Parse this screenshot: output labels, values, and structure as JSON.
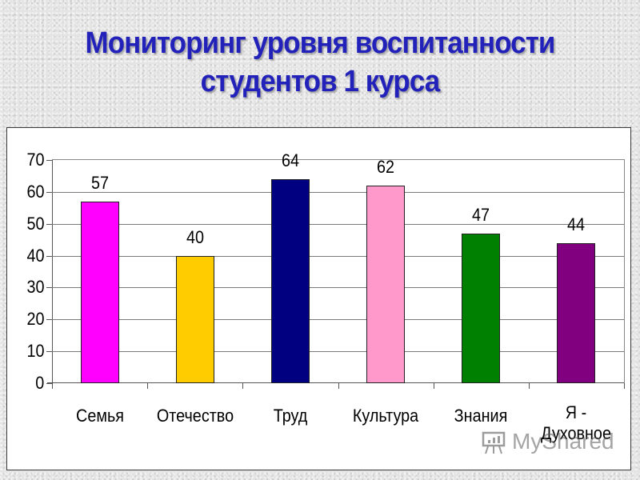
{
  "title": {
    "line1": "Мониторинг уровня воспитанности",
    "line2": "студентов 1 курса"
  },
  "watermark": {
    "text": "MyShared",
    "icon": "presentation-board-icon"
  },
  "colors": {
    "title": "#2222bb",
    "bars": [
      "#ff00ff",
      "#ffcc00",
      "#000080",
      "#ff99cc",
      "#008000",
      "#800080"
    ]
  },
  "chart_data": {
    "type": "bar",
    "title": "Мониторинг уровня воспитанности студентов 1 курса",
    "xlabel": "",
    "ylabel": "",
    "categories": [
      "Семья",
      "Отечество",
      "Труд",
      "Культура",
      "Знания",
      "Я - Духовное"
    ],
    "values": [
      57,
      40,
      64,
      62,
      47,
      44
    ],
    "value_labels": [
      "57",
      "40",
      "64",
      "62",
      "47",
      "44"
    ],
    "ylim": [
      0,
      70
    ],
    "yticks": [
      "0",
      "10",
      "20",
      "30",
      "40",
      "50",
      "60",
      "70"
    ],
    "grid": true,
    "legend": false
  }
}
